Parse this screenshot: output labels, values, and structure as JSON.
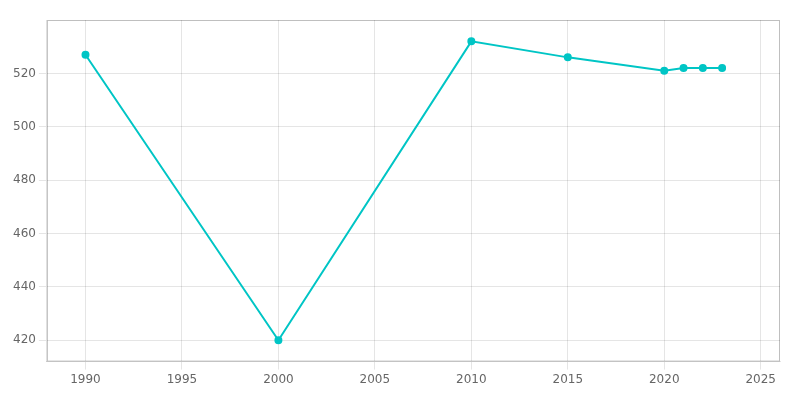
{
  "chart_data": {
    "type": "line",
    "x": [
      1990,
      2000,
      2010,
      2015,
      2020,
      2021,
      2022,
      2023
    ],
    "values": [
      527,
      420,
      532,
      526,
      521,
      522,
      522,
      522
    ],
    "color": "#00C5C5",
    "marker": "circle",
    "xlim": [
      1988,
      2026
    ],
    "ylim": [
      412,
      540
    ],
    "xticks": [
      1990,
      1995,
      2000,
      2005,
      2010,
      2015,
      2020,
      2025
    ],
    "yticks": [
      420,
      440,
      460,
      480,
      500,
      520
    ],
    "grid": true
  }
}
